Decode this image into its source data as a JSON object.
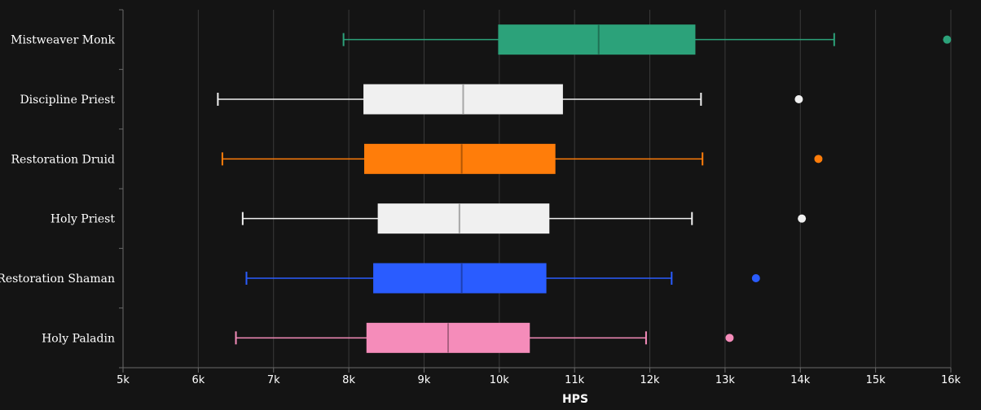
{
  "chart_data": {
    "type": "boxplot",
    "orientation": "horizontal",
    "xlabel": "HPS",
    "xlim": [
      5000,
      16000
    ],
    "grid": true,
    "ticks": [
      {
        "value": 5000,
        "label": "5k"
      },
      {
        "value": 6000,
        "label": "6k"
      },
      {
        "value": 7000,
        "label": "7k"
      },
      {
        "value": 8000,
        "label": "8k"
      },
      {
        "value": 9000,
        "label": "9k"
      },
      {
        "value": 10000,
        "label": "10k"
      },
      {
        "value": 11000,
        "label": "11k"
      },
      {
        "value": 12000,
        "label": "12k"
      },
      {
        "value": 13000,
        "label": "13k"
      },
      {
        "value": 14000,
        "label": "14k"
      },
      {
        "value": 15000,
        "label": "15k"
      },
      {
        "value": 16000,
        "label": "16k"
      }
    ],
    "series": [
      {
        "name": "Mistweaver Monk",
        "color": "#2ca27a",
        "min": 7930,
        "q1": 9990,
        "median": 11320,
        "q3": 12600,
        "max": 14450,
        "outliers": [
          15950
        ]
      },
      {
        "name": "Discipline Priest",
        "color": "#f0f0f0",
        "min": 6260,
        "q1": 8200,
        "median": 9520,
        "q3": 10840,
        "max": 12680,
        "outliers": [
          13980
        ]
      },
      {
        "name": "Restoration Druid",
        "color": "#ff7d0a",
        "min": 6320,
        "q1": 8210,
        "median": 9500,
        "q3": 10740,
        "max": 12700,
        "outliers": [
          14240
        ]
      },
      {
        "name": "Holy Priest",
        "color": "#f0f0f0",
        "min": 6590,
        "q1": 8390,
        "median": 9470,
        "q3": 10660,
        "max": 12560,
        "outliers": [
          14020
        ]
      },
      {
        "name": "Restoration Shaman",
        "color": "#2a5cff",
        "min": 6640,
        "q1": 8330,
        "median": 9500,
        "q3": 10620,
        "max": 12290,
        "outliers": [
          13410
        ]
      },
      {
        "name": "Holy Paladin",
        "color": "#f58cba",
        "min": 6500,
        "q1": 8240,
        "median": 9320,
        "q3": 10400,
        "max": 11950,
        "outliers": [
          13060
        ]
      }
    ]
  }
}
